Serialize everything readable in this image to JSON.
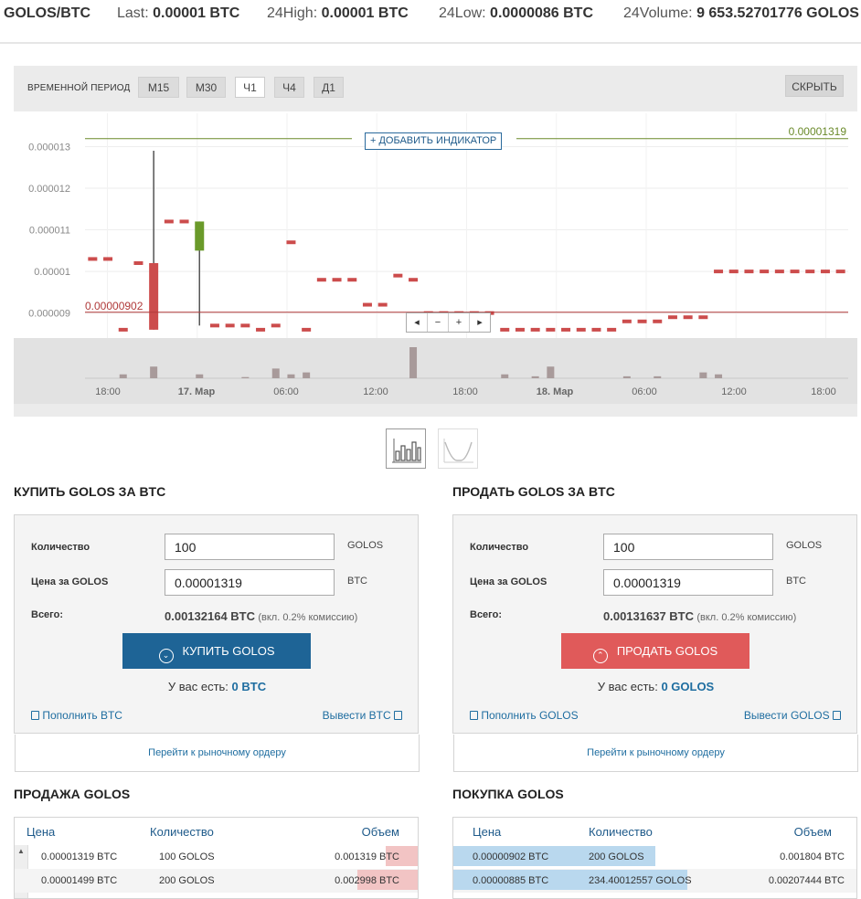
{
  "ticker": {
    "pair": "GOLOS/BTC",
    "last_label": "Last:",
    "last_value": "0.00001 BTC",
    "high_label": "24High:",
    "high_value": "0.00001 BTC",
    "low_label": "24Low:",
    "low_value": "0.0000086 BTC",
    "volume_label": "24Volume:",
    "volume_value": "9 653.52701776 GOLOS"
  },
  "chart_toolbar": {
    "period_label": "ВРЕМЕННОЙ ПЕРИОД",
    "timeframes": [
      "М15",
      "М30",
      "Ч1",
      "Ч4",
      "Д1"
    ],
    "active_timeframe": "Ч1",
    "hide_label": "СКРЫТЬ",
    "add_indicator": "+ ДОБАВИТЬ ИНДИКАТОР",
    "nav": [
      "◂",
      "−",
      "+",
      "▸"
    ]
  },
  "chart_data": {
    "type": "candlestick",
    "y_ticks": [
      "0.000013",
      "0.000012",
      "0.000011",
      "0.00001",
      "0.000009"
    ],
    "ylim": [
      8.4e-06,
      1.38e-05
    ],
    "x_ticks": [
      "18:00",
      "17. Мар",
      "06:00",
      "12:00",
      "18:00",
      "18. Мар",
      "06:00",
      "12:00",
      "18:00"
    ],
    "last_price_line": {
      "value": 1.319e-05,
      "label": "0.00001319",
      "color": "#6a8a2a"
    },
    "low_price_line": {
      "value": 9.02e-06,
      "label": "0.00000902",
      "color": "#b03a3a"
    },
    "up_color": "#6a9a2a",
    "down_color": "#cc4c4c",
    "volume_color": "#a89a9a",
    "candles": [
      {
        "i": 0,
        "o": 1.03e-05,
        "c": 1.03e-05,
        "h": 1.03e-05,
        "l": 1.03e-05,
        "v": 0
      },
      {
        "i": 1,
        "o": 1.03e-05,
        "c": 1.03e-05,
        "h": 1.03e-05,
        "l": 1.03e-05,
        "v": 0
      },
      {
        "i": 2,
        "o": 8.6e-06,
        "c": 8.6e-06,
        "h": 8.6e-06,
        "l": 8.6e-06,
        "v": 1
      },
      {
        "i": 3,
        "o": 1.02e-05,
        "c": 1.02e-05,
        "h": 1.02e-05,
        "l": 1.02e-05,
        "v": 0
      },
      {
        "i": 4,
        "o": 1.02e-05,
        "c": 8.6e-06,
        "h": 1.29e-05,
        "l": 8.6e-06,
        "v": 3
      },
      {
        "i": 5,
        "o": 1.12e-05,
        "c": 1.12e-05,
        "h": 1.12e-05,
        "l": 1.12e-05,
        "v": 0
      },
      {
        "i": 6,
        "o": 1.12e-05,
        "c": 1.12e-05,
        "h": 1.12e-05,
        "l": 1.12e-05,
        "v": 0
      },
      {
        "i": 7,
        "o": 1.05e-05,
        "c": 1.12e-05,
        "h": 1.12e-05,
        "l": 8.7e-06,
        "v": 1
      },
      {
        "i": 8,
        "o": 8.7e-06,
        "c": 8.7e-06,
        "h": 8.7e-06,
        "l": 8.7e-06,
        "v": 0
      },
      {
        "i": 9,
        "o": 8.7e-06,
        "c": 8.7e-06,
        "h": 8.7e-06,
        "l": 8.7e-06,
        "v": 0
      },
      {
        "i": 10,
        "o": 8.7e-06,
        "c": 8.7e-06,
        "h": 8.7e-06,
        "l": 8.7e-06,
        "v": 0.3
      },
      {
        "i": 11,
        "o": 8.6e-06,
        "c": 8.6e-06,
        "h": 8.6e-06,
        "l": 8.6e-06,
        "v": 0
      },
      {
        "i": 12,
        "o": 8.7e-06,
        "c": 8.7e-06,
        "h": 8.7e-06,
        "l": 8.7e-06,
        "v": 2.5
      },
      {
        "i": 13,
        "o": 1.07e-05,
        "c": 1.07e-05,
        "h": 1.07e-05,
        "l": 1.07e-05,
        "v": 1
      },
      {
        "i": 14,
        "o": 8.6e-06,
        "c": 8.6e-06,
        "h": 8.6e-06,
        "l": 8.6e-06,
        "v": 1.5
      },
      {
        "i": 15,
        "o": 9.8e-06,
        "c": 9.8e-06,
        "h": 9.8e-06,
        "l": 9.8e-06,
        "v": 0
      },
      {
        "i": 16,
        "o": 9.8e-06,
        "c": 9.8e-06,
        "h": 9.8e-06,
        "l": 9.8e-06,
        "v": 0
      },
      {
        "i": 17,
        "o": 9.8e-06,
        "c": 9.8e-06,
        "h": 9.8e-06,
        "l": 9.8e-06,
        "v": 0
      },
      {
        "i": 18,
        "o": 9.2e-06,
        "c": 9.2e-06,
        "h": 9.2e-06,
        "l": 9.2e-06,
        "v": 0
      },
      {
        "i": 19,
        "o": 9.2e-06,
        "c": 9.2e-06,
        "h": 9.2e-06,
        "l": 9.2e-06,
        "v": 0
      },
      {
        "i": 20,
        "o": 9.9e-06,
        "c": 9.9e-06,
        "h": 9.9e-06,
        "l": 9.9e-06,
        "v": 0
      },
      {
        "i": 21,
        "o": 9.8e-06,
        "c": 9.8e-06,
        "h": 9.8e-06,
        "l": 9.8e-06,
        "v": 8
      },
      {
        "i": 22,
        "o": 9e-06,
        "c": 9e-06,
        "h": 9e-06,
        "l": 9e-06,
        "v": 0
      },
      {
        "i": 23,
        "o": 9e-06,
        "c": 9e-06,
        "h": 9e-06,
        "l": 9e-06,
        "v": 0
      },
      {
        "i": 24,
        "o": 9e-06,
        "c": 9e-06,
        "h": 9e-06,
        "l": 9e-06,
        "v": 0
      },
      {
        "i": 25,
        "o": 9e-06,
        "c": 9e-06,
        "h": 9e-06,
        "l": 9e-06,
        "v": 0
      },
      {
        "i": 26,
        "o": 9e-06,
        "c": 9e-06,
        "h": 9e-06,
        "l": 9e-06,
        "v": 0
      },
      {
        "i": 27,
        "o": 8.6e-06,
        "c": 8.6e-06,
        "h": 8.6e-06,
        "l": 8.6e-06,
        "v": 1
      },
      {
        "i": 28,
        "o": 8.6e-06,
        "c": 8.6e-06,
        "h": 8.6e-06,
        "l": 8.6e-06,
        "v": 0
      },
      {
        "i": 29,
        "o": 8.6e-06,
        "c": 8.6e-06,
        "h": 8.6e-06,
        "l": 8.6e-06,
        "v": 0.5
      },
      {
        "i": 30,
        "o": 8.6e-06,
        "c": 8.6e-06,
        "h": 8.6e-06,
        "l": 8.6e-06,
        "v": 3
      },
      {
        "i": 31,
        "o": 8.6e-06,
        "c": 8.6e-06,
        "h": 8.6e-06,
        "l": 8.6e-06,
        "v": 0
      },
      {
        "i": 32,
        "o": 8.6e-06,
        "c": 8.6e-06,
        "h": 8.6e-06,
        "l": 8.6e-06,
        "v": 0
      },
      {
        "i": 33,
        "o": 8.6e-06,
        "c": 8.6e-06,
        "h": 8.6e-06,
        "l": 8.6e-06,
        "v": 0
      },
      {
        "i": 34,
        "o": 8.6e-06,
        "c": 8.6e-06,
        "h": 8.6e-06,
        "l": 8.6e-06,
        "v": 0
      },
      {
        "i": 35,
        "o": 8.8e-06,
        "c": 8.8e-06,
        "h": 8.8e-06,
        "l": 8.8e-06,
        "v": 0.5
      },
      {
        "i": 36,
        "o": 8.8e-06,
        "c": 8.8e-06,
        "h": 8.8e-06,
        "l": 8.8e-06,
        "v": 0
      },
      {
        "i": 37,
        "o": 8.8e-06,
        "c": 8.8e-06,
        "h": 8.8e-06,
        "l": 8.8e-06,
        "v": 0.5
      },
      {
        "i": 38,
        "o": 8.9e-06,
        "c": 8.9e-06,
        "h": 8.9e-06,
        "l": 8.9e-06,
        "v": 0
      },
      {
        "i": 39,
        "o": 8.9e-06,
        "c": 8.9e-06,
        "h": 8.9e-06,
        "l": 8.9e-06,
        "v": 0
      },
      {
        "i": 40,
        "o": 8.9e-06,
        "c": 8.9e-06,
        "h": 8.9e-06,
        "l": 8.9e-06,
        "v": 1.5
      },
      {
        "i": 41,
        "o": 1e-05,
        "c": 1e-05,
        "h": 1e-05,
        "l": 1e-05,
        "v": 1
      },
      {
        "i": 42,
        "o": 1e-05,
        "c": 1e-05,
        "h": 1e-05,
        "l": 1e-05,
        "v": 0
      },
      {
        "i": 43,
        "o": 1e-05,
        "c": 1e-05,
        "h": 1e-05,
        "l": 1e-05,
        "v": 0
      },
      {
        "i": 44,
        "o": 1e-05,
        "c": 1e-05,
        "h": 1e-05,
        "l": 1e-05,
        "v": 0
      },
      {
        "i": 45,
        "o": 1e-05,
        "c": 1e-05,
        "h": 1e-05,
        "l": 1e-05,
        "v": 0
      },
      {
        "i": 46,
        "o": 1e-05,
        "c": 1e-05,
        "h": 1e-05,
        "l": 1e-05,
        "v": 0
      },
      {
        "i": 47,
        "o": 1e-05,
        "c": 1e-05,
        "h": 1e-05,
        "l": 1e-05,
        "v": 0
      },
      {
        "i": 48,
        "o": 1e-05,
        "c": 1e-05,
        "h": 1e-05,
        "l": 1e-05,
        "v": 0
      },
      {
        "i": 49,
        "o": 1e-05,
        "c": 1e-05,
        "h": 1e-05,
        "l": 1e-05,
        "v": 0
      }
    ]
  },
  "buy_form": {
    "title": "КУПИТЬ GOLOS ЗА BTC",
    "qty_label": "Количество",
    "qty_value": "100",
    "qty_unit": "GOLOS",
    "price_label": "Цена за GOLOS",
    "price_value": "0.00001319",
    "price_unit": "BTC",
    "total_label": "Всего:",
    "total_value": "0.00132164 BTC",
    "total_fee": "(вкл. 0.2% комиссию)",
    "button": "КУПИТЬ GOLOS",
    "have_label": "У вас есть:",
    "have_value": "0 BTC",
    "deposit": "Пополнить BTC",
    "withdraw": "Вывести BTC",
    "market_order": "Перейти к рыночному ордеру",
    "color": "#1e6496"
  },
  "sell_form": {
    "title": "ПРОДАТЬ GOLOS ЗА BTC",
    "qty_label": "Количество",
    "qty_value": "100",
    "qty_unit": "GOLOS",
    "price_label": "Цена за GOLOS",
    "price_value": "0.00001319",
    "price_unit": "BTC",
    "total_label": "Всего:",
    "total_value": "0.00131637 BTC",
    "total_fee": "(вкл. 0.2% комиссию)",
    "button": "ПРОДАТЬ GOLOS",
    "have_label": "У вас есть:",
    "have_value": "0 GOLOS",
    "deposit": "Пополнить GOLOS",
    "withdraw": "Вывести GOLOS",
    "market_order": "Перейти к рыночному ордеру",
    "color": "#e05a5a"
  },
  "sell_book": {
    "title": "ПРОДАЖА GOLOS",
    "headers": [
      "Цена",
      "Количество",
      "Объем"
    ],
    "rows": [
      {
        "price": "0.00001319 BTC",
        "qty": "100 GOLOS",
        "volume": "0.001319 BTC",
        "depth": 0.08
      },
      {
        "price": "0.00001499 BTC",
        "qty": "200 GOLOS",
        "volume": "0.002998 BTC",
        "depth": 0.15
      }
    ]
  },
  "buy_book": {
    "title": "ПОКУПКА GOLOS",
    "headers": [
      "Цена",
      "Количество",
      "Объем"
    ],
    "rows": [
      {
        "price": "0.00000902 BTC",
        "qty": "200 GOLOS",
        "volume": "0.001804 BTC",
        "depth": 0.5
      },
      {
        "price": "0.00000885 BTC",
        "qty": "234.40012557 GOLOS",
        "volume": "0.00207444 BTC",
        "depth": 0.58
      }
    ]
  }
}
